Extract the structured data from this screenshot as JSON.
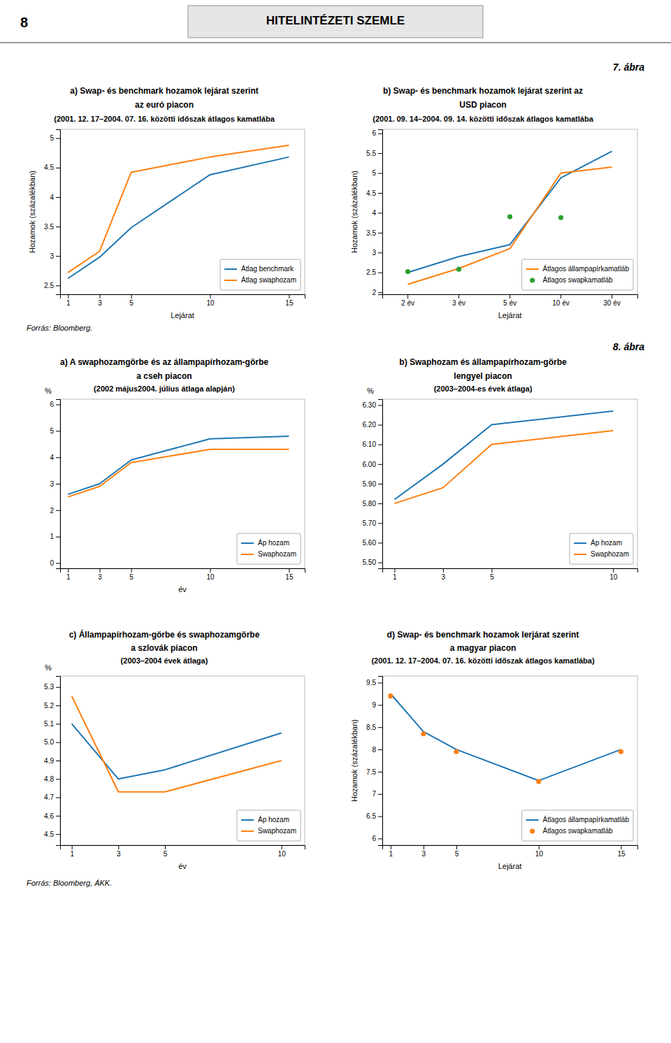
{
  "title": "HITELINTÉZETI SZEMLE",
  "annotations": [
    "8",
    "7. ábra",
    "Forrás: Bloomberg.",
    "8. ábra",
    "Forrás: Bloomberg, ÁKK."
  ],
  "chart_data": [
    {
      "type": "line",
      "title": [
        "a) Swap- és benchmark hozamok lejárat szerint",
        "az euró piacon"
      ],
      "subtitle": "(2001. 12. 17–2004. 07. 16. közötti időszak átlagos kamatlába",
      "xlabel": "Lejárat",
      "ylabel": "Hozamok (százalékban)",
      "x": [
        1,
        3,
        5,
        10,
        15
      ],
      "xlim": [
        0.5,
        16
      ],
      "xticks": [
        1,
        3,
        5,
        10,
        15
      ],
      "ylim": [
        2.35,
        5.15
      ],
      "yticks": [
        2.5,
        3,
        3.5,
        4,
        4.5,
        5
      ],
      "grid": false,
      "legend": "lower right",
      "series": [
        {
          "name": "Átlag benchmark",
          "type": "line",
          "values": [
            2.62,
            2.98,
            3.48,
            4.38,
            4.68
          ]
        },
        {
          "name": "Átlag swaphozam",
          "type": "line",
          "values": [
            2.72,
            3.08,
            4.42,
            4.68,
            4.88
          ]
        }
      ]
    },
    {
      "type": "line",
      "title": [
        "b) Swap- és benchmark hozamok lejárat szerint az",
        "USD piacon"
      ],
      "subtitle": "(2001. 09. 14–2004. 09. 14. közötti időszak átlagos kamatlába",
      "xlabel": "Lejárat",
      "ylabel": "Hozamok (százalékban)",
      "categories": [
        "2 év",
        "3 év",
        "5 év",
        "10 év",
        "30 év"
      ],
      "ylim": [
        1.95,
        6.1
      ],
      "yticks": [
        2,
        2.5,
        3,
        3.5,
        4,
        4.5,
        5,
        5.5,
        6
      ],
      "grid": false,
      "legend": "lower right",
      "series": [
        {
          "type": "line",
          "values": [
            2.5,
            2.9,
            3.2,
            4.88,
            5.55
          ]
        },
        {
          "name": "Átlagos állampapírkamatláb",
          "type": "line",
          "values": [
            2.2,
            2.6,
            3.1,
            5.0,
            5.15
          ]
        },
        {
          "name": "Átlagos swapkamatláb",
          "type": "scatter",
          "marker": "circle",
          "values": [
            2.52,
            2.58,
            3.9,
            3.88,
            null
          ]
        }
      ]
    },
    {
      "type": "line",
      "title": [
        "a) A swaphozamgörbe és az állampapírhozam-görbe",
        "a cseh piacon"
      ],
      "subtitle": "(2002 május2004. július átlaga alapján)",
      "xlabel": "év",
      "ylabel": "%",
      "x": [
        1,
        3,
        5,
        10,
        15
      ],
      "xlim": [
        0.5,
        16
      ],
      "xticks": [
        1,
        3,
        5,
        10,
        15
      ],
      "ylim": [
        -0.2,
        6.2
      ],
      "yticks": [
        0,
        1,
        2,
        3,
        4,
        5,
        6
      ],
      "grid": false,
      "legend": "lower right",
      "series": [
        {
          "name": "Áp hozam",
          "type": "line",
          "values": [
            2.6,
            3.0,
            3.9,
            4.7,
            4.8
          ]
        },
        {
          "name": "Swaphozam",
          "type": "line",
          "values": [
            2.5,
            2.9,
            3.8,
            4.3,
            4.3
          ]
        }
      ]
    },
    {
      "type": "line",
      "title": [
        "b) Swaphozam és állampapírhozam-görbe",
        "lengyel piacon"
      ],
      "subtitle": "(2003–2004-es évek átlaga)",
      "ylabel": "%",
      "x": [
        1,
        3,
        5,
        10
      ],
      "xlim": [
        0.5,
        11
      ],
      "xticks": [
        1,
        3,
        5,
        10
      ],
      "ylim": [
        5.47,
        6.33
      ],
      "yticks": [
        {
          "value": 5.5,
          "label": "5.50"
        },
        {
          "value": 5.6,
          "label": "5.60"
        },
        {
          "value": 5.7,
          "label": "5.70"
        },
        {
          "value": 5.8,
          "label": "5.80"
        },
        {
          "value": 5.9,
          "label": "5.90"
        },
        {
          "value": 6,
          "label": "6.00"
        },
        {
          "value": 6.1,
          "label": "6.10"
        },
        {
          "value": 6.2,
          "label": "6.20"
        },
        {
          "value": 6.3,
          "label": "6.30"
        }
      ],
      "grid": false,
      "legend": "lower right",
      "series": [
        {
          "name": "Áp hozam",
          "type": "line",
          "values": [
            5.82,
            6.0,
            6.2,
            6.27
          ]
        },
        {
          "name": "Swaphozam",
          "type": "line",
          "values": [
            5.8,
            5.88,
            6.1,
            6.17
          ]
        }
      ]
    },
    {
      "type": "line",
      "title": [
        "c) Állampapírhozam-görbe és swaphozamgörbe",
        "a szlovák piacon"
      ],
      "subtitle": "(2003–2004 évek átlaga)",
      "xlabel": "év",
      "ylabel": "%",
      "x": [
        1,
        3,
        5,
        10
      ],
      "xlim": [
        0.5,
        11
      ],
      "xticks": [
        1,
        3,
        5,
        10
      ],
      "ylim": [
        4.44,
        5.36
      ],
      "yticks": [
        4.5,
        4.6,
        4.7,
        4.8,
        4.9,
        {
          "value": 5,
          "label": "5.0"
        },
        5.1,
        5.2,
        5.3
      ],
      "grid": false,
      "legend": "lower right",
      "series": [
        {
          "name": "Áp hozam",
          "type": "line",
          "values": [
            5.1,
            4.8,
            4.85,
            5.05
          ]
        },
        {
          "name": "Swaphozam",
          "type": "line",
          "values": [
            5.25,
            4.73,
            4.73,
            4.9
          ]
        }
      ]
    },
    {
      "type": "line",
      "title": [
        "d) Swap- és benchmark hozamok lerjárat szerint",
        "a magyar piacon"
      ],
      "subtitle": "(2001. 12. 17–2004. 07. 16. közötti időszak átlagos kamatlába)",
      "xlabel": "Lejárat",
      "ylabel": "Hozamok (százalékban)",
      "x": [
        1,
        3,
        5,
        10,
        15
      ],
      "xlim": [
        0.5,
        16
      ],
      "xticks": [
        1,
        3,
        5,
        10,
        15
      ],
      "ylim": [
        5.85,
        9.65
      ],
      "yticks": [
        6,
        6.5,
        7,
        7.5,
        8,
        8.5,
        9,
        9.5
      ],
      "grid": false,
      "legend": "lower right",
      "series": [
        {
          "name": "Átlagos állampapírkamatláb",
          "type": "line",
          "values": [
            9.25,
            8.4,
            8.0,
            7.3,
            8.0
          ]
        },
        {
          "name": "Átlagos swapkamatláb",
          "type": "scatter",
          "marker": "circle",
          "values": [
            9.2,
            8.35,
            7.95,
            7.28,
            7.95
          ]
        }
      ]
    }
  ]
}
